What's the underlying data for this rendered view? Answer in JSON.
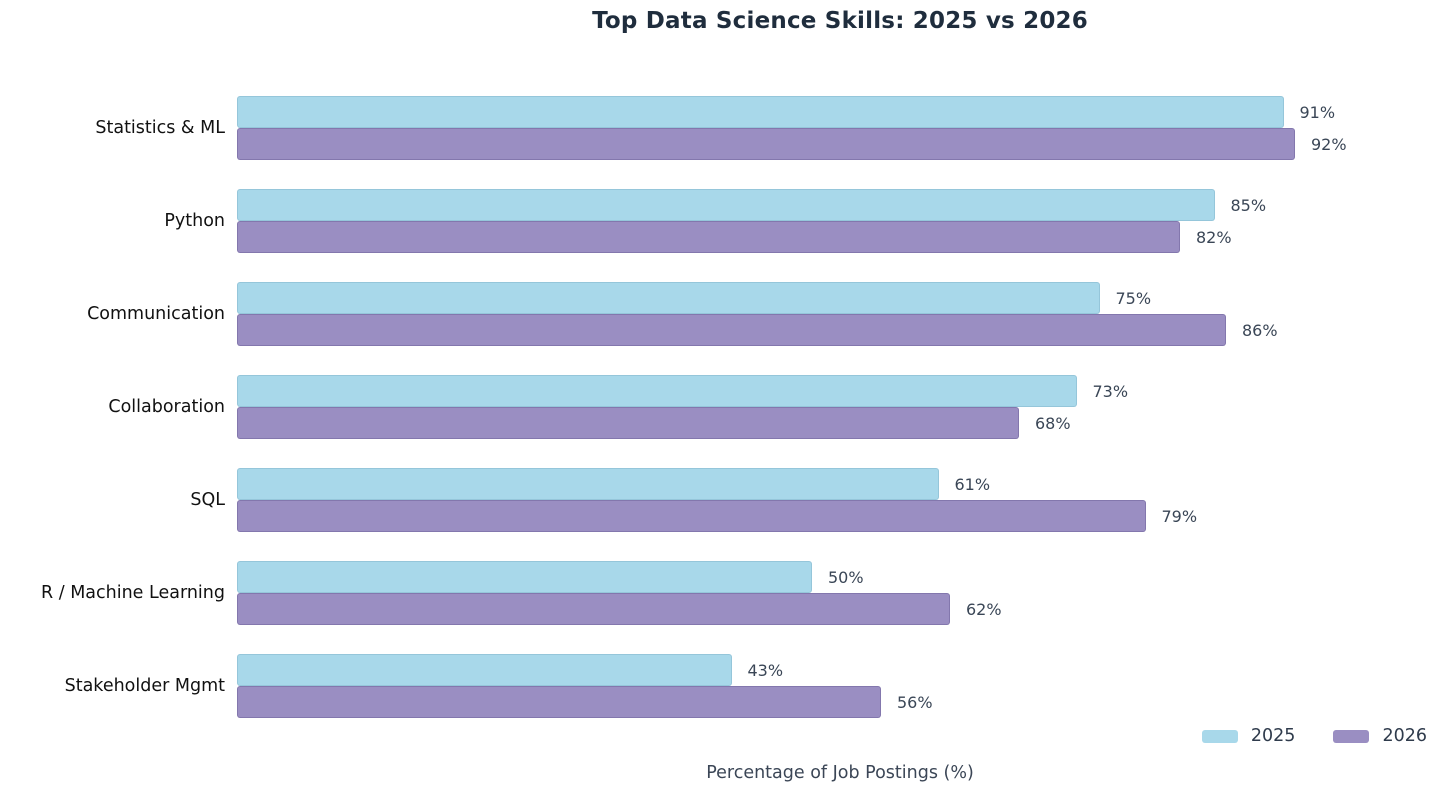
{
  "title": "Top Data Science Skills: 2025 vs 2026",
  "xlabel": "Percentage of Job Postings (%)",
  "chart_data": {
    "type": "bar",
    "orientation": "horizontal",
    "title": "Top Data Science Skills: 2025 vs 2026",
    "xlabel": "Percentage of Job Postings (%)",
    "ylabel": "",
    "categories": [
      "Statistics & ML",
      "Python",
      "Communication",
      "Collaboration",
      "SQL",
      "R / Machine Learning",
      "Stakeholder Mgmt"
    ],
    "series": [
      {
        "name": "2025",
        "color": "#A8D8EA",
        "values": [
          91,
          85,
          75,
          73,
          61,
          50,
          43
        ]
      },
      {
        "name": "2026",
        "color": "#9A8EC2",
        "values": [
          92,
          82,
          86,
          68,
          79,
          62,
          56
        ]
      }
    ],
    "value_suffix": "%",
    "value_labels_shown": true,
    "xlim": [
      0,
      105
    ],
    "grid": false,
    "legend_position": "lower-right",
    "background_color": "#ffffff",
    "title_color": "#1f2d3d",
    "category_label_color": "#111111",
    "value_label_color": "#3a4656"
  }
}
